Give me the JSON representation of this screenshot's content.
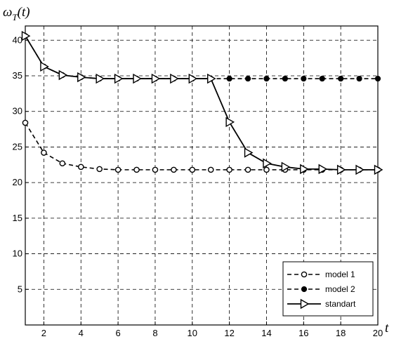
{
  "chart_data": {
    "type": "line",
    "title": "",
    "ylabel": "ω_T(t)",
    "ylabel_main": "ω",
    "ylabel_sub": "T",
    "ylabel_tail": "(t)",
    "xlabel": "t",
    "xlim": [
      1,
      20
    ],
    "ylim": [
      0,
      42
    ],
    "xticks": [
      2,
      4,
      6,
      8,
      10,
      12,
      14,
      16,
      18,
      20
    ],
    "yticks": [
      5,
      10,
      15,
      20,
      25,
      30,
      35,
      40
    ],
    "grid": true,
    "legend_position": "bottom-right",
    "x": [
      1,
      2,
      3,
      4,
      5,
      6,
      7,
      8,
      9,
      10,
      11,
      12,
      13,
      14,
      15,
      16,
      17,
      18,
      19,
      20
    ],
    "series": [
      {
        "name": "model 1",
        "line_style": "dashed",
        "marker": "open-circle",
        "values": [
          28.4,
          24.2,
          22.7,
          22.2,
          21.9,
          21.8,
          21.8,
          21.8,
          21.8,
          21.8,
          21.8,
          21.8,
          21.8,
          21.8,
          21.8,
          21.8,
          21.8,
          21.8,
          21.8,
          21.8
        ]
      },
      {
        "name": "model 2",
        "line_style": "dashed",
        "marker": "filled-circle",
        "values": [
          40.6,
          36.3,
          35.1,
          34.8,
          34.6,
          34.6,
          34.6,
          34.6,
          34.6,
          34.6,
          34.6,
          34.6,
          34.6,
          34.6,
          34.6,
          34.6,
          34.6,
          34.6,
          34.6,
          34.6
        ]
      },
      {
        "name": "standart",
        "line_style": "solid",
        "marker": "open-triangle-right",
        "values": [
          40.6,
          36.3,
          35.1,
          34.8,
          34.6,
          34.6,
          34.6,
          34.6,
          34.6,
          34.6,
          34.6,
          28.5,
          24.2,
          22.7,
          22.2,
          21.9,
          21.9,
          21.8,
          21.8,
          21.8
        ]
      }
    ]
  }
}
